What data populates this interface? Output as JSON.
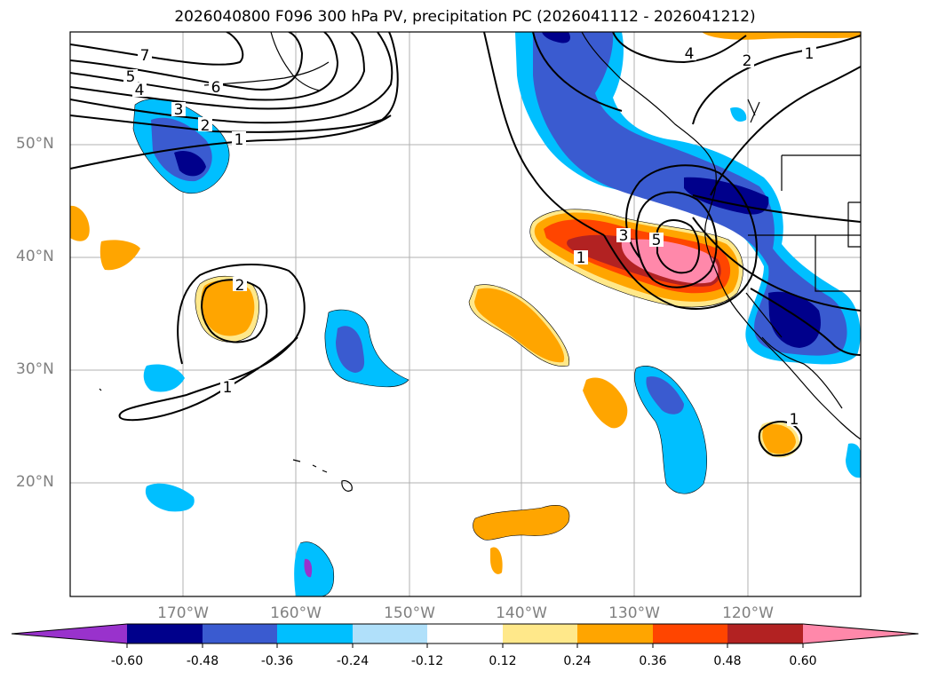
{
  "title": "2026040800 F096 300 hPa PV, precipitation PC (2026041112 - 2026041212)",
  "lat_labels": [
    "50°N",
    "40°N",
    "30°N",
    "20°N"
  ],
  "lon_labels": [
    "170°W",
    "160°W",
    "150°W",
    "140°W",
    "130°W",
    "120°W"
  ],
  "contour_labels": [
    "7",
    "6",
    "5",
    "4",
    "3",
    "2",
    "1",
    "4",
    "2",
    "1",
    "2",
    "1",
    "5",
    "3",
    "1",
    "1"
  ],
  "colorbar": {
    "tick_labels": [
      "-0.60",
      "-0.48",
      "-0.36",
      "-0.24",
      "-0.12",
      "0.12",
      "0.24",
      "0.36",
      "0.48",
      "0.60"
    ],
    "colors": [
      "#9932cc",
      "#00008b",
      "#3a5bd0",
      "#00bfff",
      "#b0e0fa",
      "#ffffff",
      "#ffe88a",
      "#ffa500",
      "#ff4500",
      "#b22222",
      "#ff88aa"
    ]
  },
  "colors": {
    "grid": "#b0b0b0",
    "tick_text": "#808080"
  }
}
